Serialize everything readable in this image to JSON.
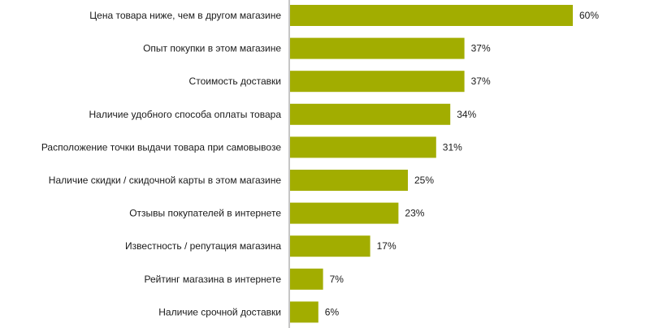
{
  "chart_data": {
    "type": "bar",
    "orientation": "horizontal",
    "categories": [
      "Цена товара ниже, чем в другом магазине",
      "Опыт покупки в этом магазине",
      "Стоимость доставки",
      "Наличие  удобного способа оплаты товара",
      "Расположение точки выдачи товара при самовывозе",
      "Наличие  скидки / скидочной карты в этом магазине",
      "Отзывы покупателей в интернете",
      "Известность / репутация магазина",
      "Рейтинг магазина в интернете",
      "Наличие  срочной доставки"
    ],
    "values": [
      60,
      37,
      37,
      34,
      31,
      25,
      23,
      17,
      7,
      6
    ],
    "value_labels": [
      "60%",
      "37%",
      "37%",
      "34%",
      "31%",
      "25%",
      "23%",
      "17%",
      "7%",
      "6%"
    ],
    "title": "",
    "xlabel": "",
    "ylabel": "",
    "xlim": [
      0,
      60
    ],
    "grid": false,
    "legend": "none",
    "colors": {
      "bar": "#a2ad00",
      "axis": "#8c8c8c",
      "text": "#1a1a1a"
    }
  }
}
